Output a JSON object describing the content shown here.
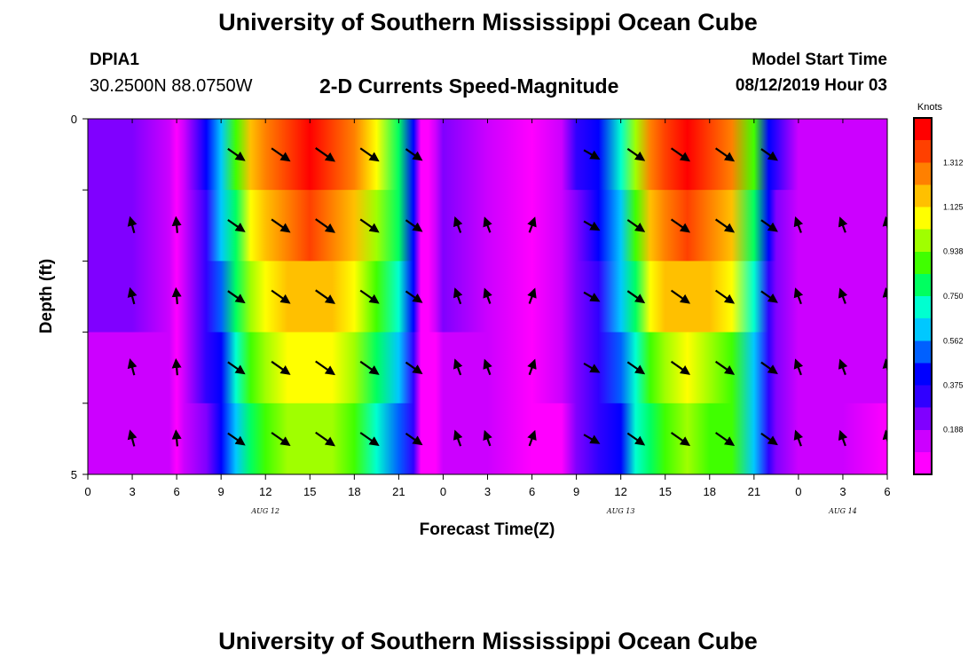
{
  "header": {
    "title": "University of Southern Mississippi Ocean Cube",
    "station_id": "DPIA1",
    "coords": "30.2500N 88.0750W",
    "model_label": "Model Start Time",
    "model_time": "08/12/2019 Hour 03"
  },
  "footer": {
    "title": "University of Southern Mississippi Ocean Cube"
  },
  "chart_data": {
    "type": "heatmap",
    "title": "2-D Currents Speed-Magnitude",
    "xlabel": "Forecast Time(Z)",
    "ylabel": "Depth (ft)",
    "x_range_hours": [
      0,
      54
    ],
    "x_tick_labels": [
      "0",
      "3",
      "6",
      "9",
      "12",
      "15",
      "18",
      "21",
      "0",
      "3",
      "6",
      "9",
      "12",
      "15",
      "18",
      "21",
      "0",
      "3",
      "6"
    ],
    "date_labels": [
      {
        "label": "AUG 12",
        "hour": 12
      },
      {
        "label": "AUG 13",
        "hour": 36
      },
      {
        "label": "AUG 14",
        "hour": 51
      }
    ],
    "y_tick_labels": [
      {
        "label": "0",
        "depth": 0
      },
      {
        "label": "5",
        "depth": 5
      }
    ],
    "depth_range": [
      0,
      5
    ],
    "depth_rows": 5,
    "colorbar": {
      "unit": "Knots",
      "min": 0,
      "max": 1.5,
      "tick_labels": [
        "0.188",
        "0.375",
        "0.562",
        "0.750",
        "0.938",
        "1.125",
        "1.312"
      ],
      "colors": [
        "#ff00ff",
        "#cc00ff",
        "#8000ff",
        "#3000ff",
        "#0000ff",
        "#0060ff",
        "#00c8ff",
        "#00ffd0",
        "#00ff60",
        "#40ff00",
        "#a0ff00",
        "#ffff00",
        "#ffc000",
        "#ff8000",
        "#ff4000",
        "#ff0000"
      ]
    },
    "speed_profile_knots": [
      [
        0,
        0.22
      ],
      [
        3,
        0.2
      ],
      [
        5.5,
        0.14
      ],
      [
        6,
        0.05
      ],
      [
        6.5,
        0.14
      ],
      [
        8,
        0.35
      ],
      [
        9,
        0.55
      ],
      [
        10,
        0.8
      ],
      [
        11,
        1.0
      ],
      [
        12,
        1.12
      ],
      [
        13.5,
        1.22
      ],
      [
        15,
        1.25
      ],
      [
        16.5,
        1.22
      ],
      [
        18,
        1.12
      ],
      [
        19.5,
        0.95
      ],
      [
        21,
        0.72
      ],
      [
        22,
        0.4
      ],
      [
        22.5,
        0.08
      ],
      [
        23,
        0.04
      ],
      [
        23.5,
        0.1
      ],
      [
        24,
        0.2
      ],
      [
        27,
        0.15
      ],
      [
        30,
        0.06
      ],
      [
        32,
        0.12
      ],
      [
        33,
        0.25
      ],
      [
        34.5,
        0.38
      ],
      [
        36,
        0.6
      ],
      [
        37,
        0.85
      ],
      [
        38,
        1.08
      ],
      [
        39,
        1.18
      ],
      [
        40.5,
        1.25
      ],
      [
        42,
        1.2
      ],
      [
        43.5,
        1.1
      ],
      [
        45,
        0.75
      ],
      [
        46,
        0.38
      ],
      [
        46.5,
        0.25
      ],
      [
        48,
        0.15
      ],
      [
        51,
        0.14
      ],
      [
        54,
        0.12
      ]
    ],
    "depth_speed_factor": [
      1.15,
      1.05,
      0.97,
      0.85,
      0.78
    ],
    "vector_times_hours": [
      3,
      6,
      10,
      13,
      16,
      19,
      22,
      25,
      27,
      30,
      34,
      37,
      40,
      43,
      46,
      48,
      51,
      54
    ],
    "vector_directions_deg": [
      345,
      355,
      125,
      125,
      125,
      125,
      125,
      340,
      340,
      20,
      120,
      125,
      125,
      125,
      125,
      340,
      340,
      350
    ],
    "vector_speeds_knots": [
      0.35,
      0.3,
      0.8,
      1.0,
      1.1,
      1.0,
      0.7,
      0.35,
      0.3,
      0.3,
      0.5,
      0.8,
      1.0,
      1.0,
      0.7,
      0.35,
      0.3,
      0.3
    ]
  }
}
